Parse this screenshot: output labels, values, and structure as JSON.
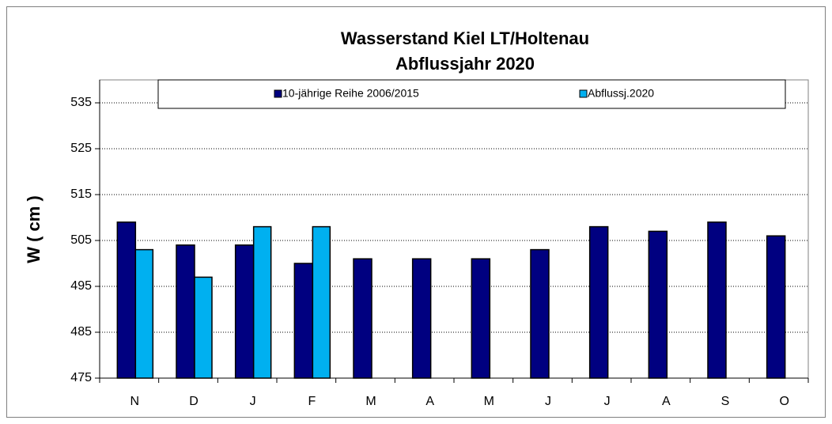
{
  "chart_data": {
    "type": "bar",
    "title": "Wasserstand Kiel LT/Holtenau",
    "subtitle": "Abflussjahr 2020",
    "y_label": "W ( cm )",
    "categories": [
      "N",
      "D",
      "J",
      "F",
      "M",
      "A",
      "M",
      "J",
      "J",
      "A",
      "S",
      "O"
    ],
    "series": [
      {
        "name": "10-jährige Reihe  2006/2015",
        "color": "#000080",
        "values": [
          509,
          504,
          504,
          500,
          501,
          501,
          501,
          503,
          508,
          507,
          509,
          506
        ]
      },
      {
        "name": "Abflussj.2020",
        "color": "#00b0f0",
        "values": [
          503,
          497,
          508,
          508,
          null,
          null,
          null,
          null,
          null,
          null,
          null,
          null
        ]
      }
    ],
    "ylim": [
      475,
      540
    ],
    "yticks": [
      475,
      485,
      495,
      505,
      515,
      525,
      535
    ],
    "grid": true
  }
}
